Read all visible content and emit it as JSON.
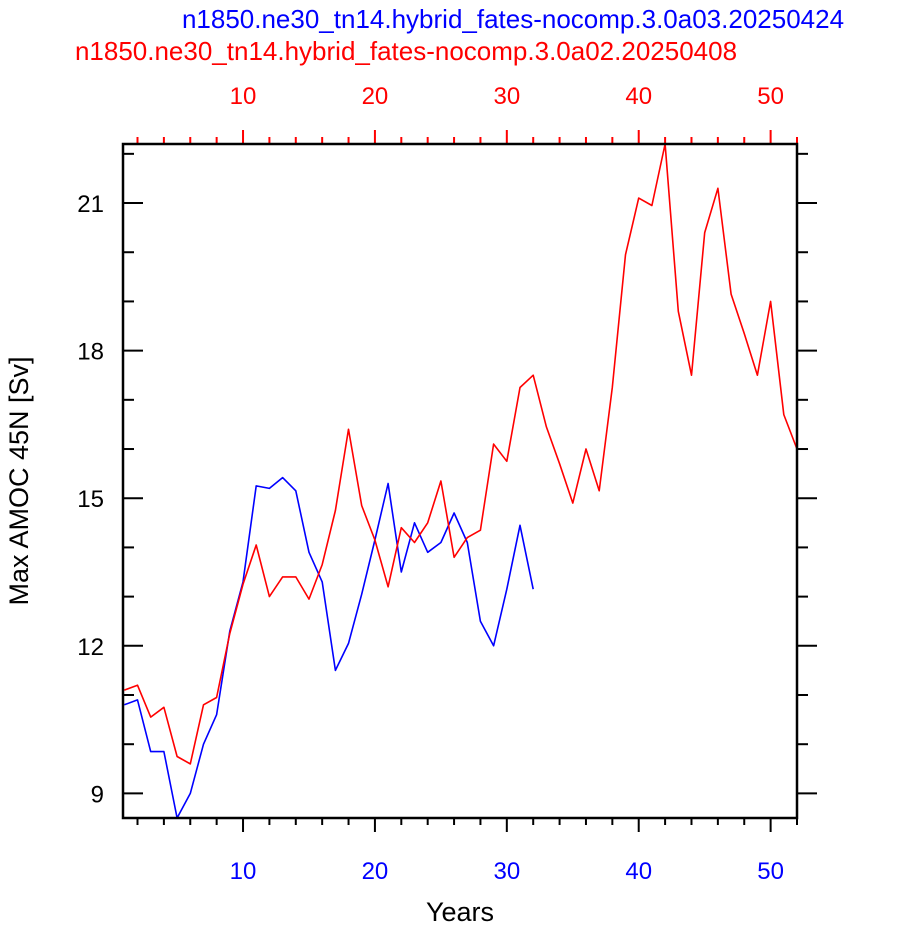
{
  "chart_data": {
    "type": "line",
    "titles": [
      {
        "text": "n1850.ne30_tn14.hybrid_fates-nocomp.3.0a03.20250424",
        "color": "#0000ff"
      },
      {
        "text": "n1850.ne30_tn14.hybrid_fates-nocomp.3.0a02.20250408",
        "color": "#ff0000"
      }
    ],
    "xlabel": "Years",
    "ylabel": "Max AMOC 45N [Sv]",
    "xlim": [
      0.9,
      52
    ],
    "ylim": [
      8.5,
      22.2
    ],
    "x_ticks": [
      10,
      20,
      30,
      40,
      50
    ],
    "x_minor_step": 2,
    "top_ticks": [
      10,
      20,
      30,
      40,
      50
    ],
    "top_minor_step": 2,
    "y_ticks": [
      9,
      12,
      15,
      18,
      21
    ],
    "y_tick_labels": [
      "9",
      "12",
      "15",
      "18",
      "21"
    ],
    "y_minor_step": 1,
    "grid": false,
    "legend": "none",
    "bottom_axis_color": "#0000ff",
    "top_axis_color": "#ff0000",
    "series": [
      {
        "color": "#0000ff",
        "x": [
          1,
          2,
          3,
          4,
          5,
          6,
          7,
          8,
          9,
          10,
          11,
          12,
          13,
          14,
          15,
          16,
          17,
          18,
          19,
          20,
          21,
          22,
          23,
          24,
          25,
          26,
          27,
          28,
          29,
          30,
          31,
          32
        ],
        "values": [
          10.8,
          10.9,
          9.85,
          9.85,
          8.5,
          9.0,
          10.0,
          10.6,
          12.3,
          13.3,
          15.25,
          15.2,
          15.42,
          15.15,
          13.9,
          13.3,
          11.5,
          12.05,
          13.05,
          14.15,
          15.3,
          13.5,
          14.5,
          13.9,
          14.1,
          14.7,
          14.1,
          12.5,
          12.0,
          13.15,
          14.45,
          13.15
        ]
      },
      {
        "color": "#ff0000",
        "x": [
          1,
          2,
          3,
          4,
          5,
          6,
          7,
          8,
          9,
          10,
          11,
          12,
          13,
          14,
          15,
          16,
          17,
          18,
          19,
          20,
          21,
          22,
          23,
          24,
          25,
          26,
          27,
          28,
          29,
          30,
          31,
          32,
          33,
          34,
          35,
          36,
          37,
          38,
          39,
          40,
          41,
          42,
          43,
          44,
          45,
          46,
          47,
          48,
          49,
          50,
          51,
          52
        ],
        "values": [
          11.1,
          11.2,
          10.55,
          10.75,
          9.75,
          9.6,
          10.8,
          10.95,
          12.25,
          13.25,
          14.05,
          13.0,
          13.4,
          13.4,
          12.95,
          13.65,
          14.75,
          16.4,
          14.85,
          14.15,
          13.2,
          14.4,
          14.1,
          14.5,
          15.35,
          13.8,
          14.2,
          14.35,
          16.1,
          15.75,
          17.25,
          17.5,
          16.45,
          15.7,
          14.9,
          16.0,
          15.15,
          17.25,
          19.95,
          21.1,
          20.95,
          22.2,
          18.8,
          17.5,
          20.4,
          21.3,
          19.15,
          18.35,
          17.5,
          19.0,
          16.7,
          16.0
        ]
      }
    ]
  }
}
